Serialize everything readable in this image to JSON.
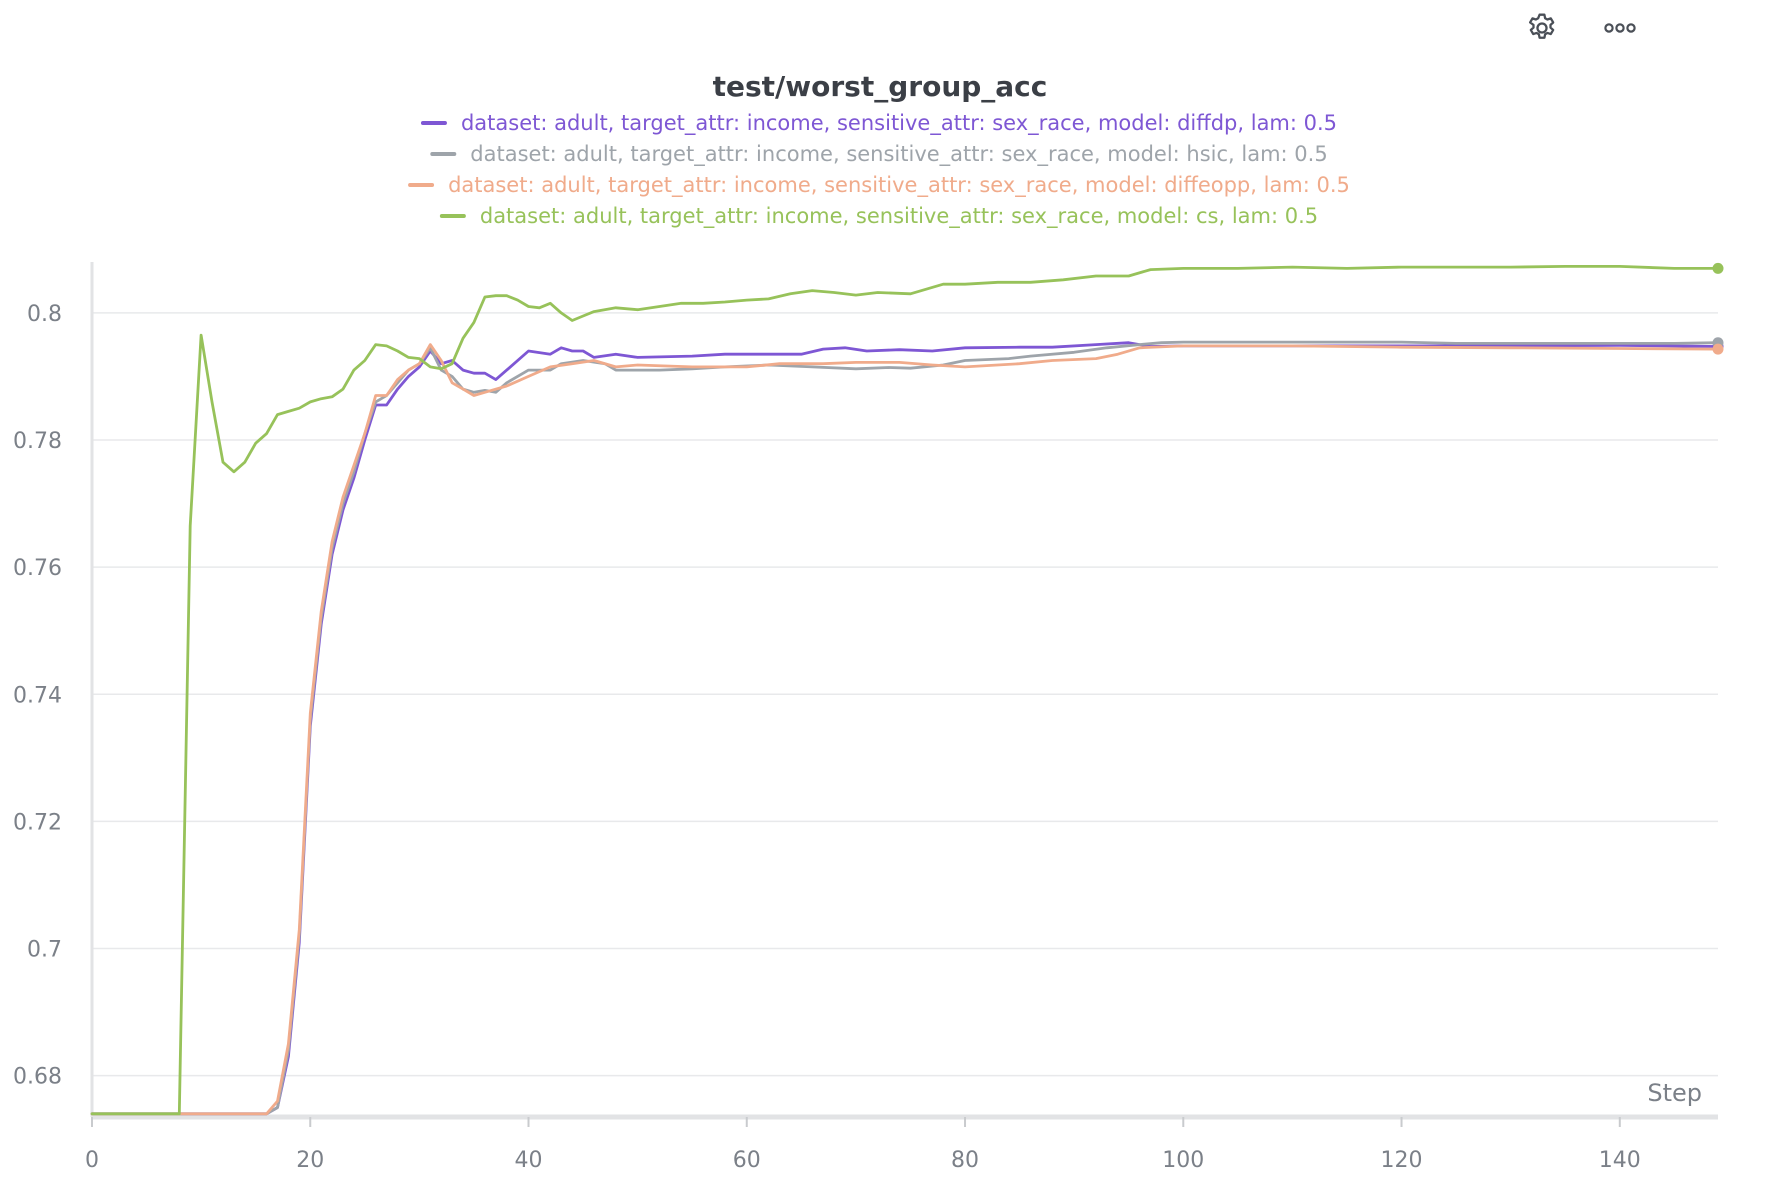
{
  "panel": {
    "settings_icon": "gear-icon",
    "more_icon": "more-horizontal-icon"
  },
  "chart_data": {
    "type": "line",
    "title": "test/worst_group_acc",
    "xlabel": "Step",
    "ylabel": "",
    "xlim": [
      0,
      149
    ],
    "ylim": [
      0.6735,
      0.808
    ],
    "xticks": [
      0,
      20,
      40,
      60,
      80,
      100,
      120,
      140
    ],
    "yticks": [
      0.68,
      0.7,
      0.72,
      0.74,
      0.76,
      0.78,
      0.8
    ],
    "ytick_labels": [
      "0.68",
      "0.7",
      "0.72",
      "0.74",
      "0.76",
      "0.78",
      "0.8"
    ],
    "grid": true,
    "legend_position": "top-center",
    "series": [
      {
        "name": "dataset: adult, target_attr: income, sensitive_attr: sex_race, model: diffdp, lam: 0.5",
        "color": "#7e57d4",
        "points": [
          [
            0,
            0.674
          ],
          [
            16,
            0.674
          ],
          [
            17,
            0.675
          ],
          [
            18,
            0.683
          ],
          [
            19,
            0.701
          ],
          [
            20,
            0.735
          ],
          [
            21,
            0.751
          ],
          [
            22,
            0.762
          ],
          [
            23,
            0.769
          ],
          [
            24,
            0.774
          ],
          [
            25,
            0.78
          ],
          [
            26,
            0.7855
          ],
          [
            27,
            0.7855
          ],
          [
            28,
            0.788
          ],
          [
            29,
            0.79
          ],
          [
            30,
            0.7915
          ],
          [
            31,
            0.794
          ],
          [
            32,
            0.792
          ],
          [
            33,
            0.7925
          ],
          [
            34,
            0.791
          ],
          [
            35,
            0.7905
          ],
          [
            36,
            0.7905
          ],
          [
            37,
            0.7895
          ],
          [
            38,
            0.791
          ],
          [
            40,
            0.794
          ],
          [
            42,
            0.7935
          ],
          [
            43,
            0.7945
          ],
          [
            44,
            0.794
          ],
          [
            45,
            0.794
          ],
          [
            46,
            0.793
          ],
          [
            48,
            0.7935
          ],
          [
            50,
            0.793
          ],
          [
            55,
            0.7932
          ],
          [
            58,
            0.7935
          ],
          [
            60,
            0.7935
          ],
          [
            63,
            0.7935
          ],
          [
            65,
            0.7935
          ],
          [
            67,
            0.7943
          ],
          [
            69,
            0.7945
          ],
          [
            71,
            0.794
          ],
          [
            74,
            0.7942
          ],
          [
            77,
            0.794
          ],
          [
            80,
            0.7945
          ],
          [
            85,
            0.7946
          ],
          [
            88,
            0.7946
          ],
          [
            92,
            0.795
          ],
          [
            95,
            0.7953
          ],
          [
            97,
            0.7947
          ],
          [
            100,
            0.7948
          ],
          [
            110,
            0.7948
          ],
          [
            120,
            0.7948
          ],
          [
            130,
            0.7948
          ],
          [
            140,
            0.7949
          ],
          [
            149,
            0.7947
          ]
        ]
      },
      {
        "name": "dataset: adult, target_attr: income, sensitive_attr: sex_race, model: hsic, lam: 0.5",
        "color": "#9ea4aa",
        "points": [
          [
            0,
            0.674
          ],
          [
            16,
            0.674
          ],
          [
            17,
            0.675
          ],
          [
            18,
            0.684
          ],
          [
            19,
            0.702
          ],
          [
            20,
            0.736
          ],
          [
            21,
            0.752
          ],
          [
            22,
            0.763
          ],
          [
            23,
            0.77
          ],
          [
            24,
            0.775
          ],
          [
            25,
            0.781
          ],
          [
            26,
            0.786
          ],
          [
            27,
            0.787
          ],
          [
            28,
            0.789
          ],
          [
            29,
            0.791
          ],
          [
            30,
            0.792
          ],
          [
            31,
            0.7945
          ],
          [
            32,
            0.791
          ],
          [
            33,
            0.79
          ],
          [
            34,
            0.788
          ],
          [
            35,
            0.7875
          ],
          [
            36,
            0.7878
          ],
          [
            37,
            0.7875
          ],
          [
            38,
            0.789
          ],
          [
            40,
            0.791
          ],
          [
            42,
            0.791
          ],
          [
            43,
            0.792
          ],
          [
            45,
            0.7925
          ],
          [
            47,
            0.792
          ],
          [
            48,
            0.791
          ],
          [
            52,
            0.791
          ],
          [
            55,
            0.7912
          ],
          [
            58,
            0.7915
          ],
          [
            62,
            0.7918
          ],
          [
            66,
            0.7915
          ],
          [
            70,
            0.7912
          ],
          [
            73,
            0.7914
          ],
          [
            75,
            0.7913
          ],
          [
            78,
            0.7918
          ],
          [
            80,
            0.7925
          ],
          [
            84,
            0.7928
          ],
          [
            86,
            0.7932
          ],
          [
            90,
            0.7938
          ],
          [
            93,
            0.7945
          ],
          [
            96,
            0.795
          ],
          [
            98,
            0.7953
          ],
          [
            100,
            0.7954
          ],
          [
            110,
            0.7954
          ],
          [
            120,
            0.7954
          ],
          [
            125,
            0.7952
          ],
          [
            130,
            0.7952
          ],
          [
            140,
            0.7952
          ],
          [
            145,
            0.7952
          ],
          [
            149,
            0.7953
          ]
        ]
      },
      {
        "name": "dataset: adult, target_attr: income, sensitive_attr: sex_race, model: diffeopp, lam: 0.5",
        "color": "#f0ab8b",
        "points": [
          [
            0,
            0.674
          ],
          [
            16,
            0.674
          ],
          [
            17,
            0.676
          ],
          [
            18,
            0.685
          ],
          [
            19,
            0.703
          ],
          [
            20,
            0.737
          ],
          [
            21,
            0.753
          ],
          [
            22,
            0.764
          ],
          [
            23,
            0.771
          ],
          [
            24,
            0.776
          ],
          [
            25,
            0.781
          ],
          [
            26,
            0.787
          ],
          [
            27,
            0.787
          ],
          [
            28,
            0.7895
          ],
          [
            29,
            0.791
          ],
          [
            30,
            0.792
          ],
          [
            31,
            0.795
          ],
          [
            32,
            0.7925
          ],
          [
            33,
            0.789
          ],
          [
            34,
            0.788
          ],
          [
            35,
            0.787
          ],
          [
            36,
            0.7875
          ],
          [
            38,
            0.7885
          ],
          [
            40,
            0.79
          ],
          [
            42,
            0.7915
          ],
          [
            44,
            0.792
          ],
          [
            46,
            0.7925
          ],
          [
            48,
            0.7915
          ],
          [
            50,
            0.7918
          ],
          [
            55,
            0.7915
          ],
          [
            60,
            0.7915
          ],
          [
            63,
            0.792
          ],
          [
            67,
            0.792
          ],
          [
            70,
            0.7922
          ],
          [
            74,
            0.7922
          ],
          [
            77,
            0.7918
          ],
          [
            80,
            0.7915
          ],
          [
            85,
            0.792
          ],
          [
            88,
            0.7925
          ],
          [
            92,
            0.7928
          ],
          [
            94,
            0.7935
          ],
          [
            96,
            0.7945
          ],
          [
            100,
            0.7948
          ],
          [
            110,
            0.7948
          ],
          [
            120,
            0.7946
          ],
          [
            130,
            0.7945
          ],
          [
            140,
            0.7944
          ],
          [
            149,
            0.7943
          ]
        ]
      },
      {
        "name": "dataset: adult, target_attr: income, sensitive_attr: sex_race, model: cs, lam: 0.5",
        "color": "#97c25a",
        "points": [
          [
            0,
            0.674
          ],
          [
            8,
            0.674
          ],
          [
            9,
            0.7665
          ],
          [
            10,
            0.7965
          ],
          [
            11,
            0.786
          ],
          [
            12,
            0.7765
          ],
          [
            13,
            0.775
          ],
          [
            14,
            0.7765
          ],
          [
            15,
            0.7795
          ],
          [
            16,
            0.781
          ],
          [
            17,
            0.784
          ],
          [
            18,
            0.7845
          ],
          [
            19,
            0.785
          ],
          [
            20,
            0.786
          ],
          [
            21,
            0.7865
          ],
          [
            22,
            0.7868
          ],
          [
            23,
            0.788
          ],
          [
            24,
            0.791
          ],
          [
            25,
            0.7925
          ],
          [
            26,
            0.795
          ],
          [
            27,
            0.7948
          ],
          [
            28,
            0.794
          ],
          [
            29,
            0.793
          ],
          [
            30,
            0.7928
          ],
          [
            31,
            0.7915
          ],
          [
            32,
            0.7912
          ],
          [
            33,
            0.792
          ],
          [
            34,
            0.796
          ],
          [
            35,
            0.7985
          ],
          [
            36,
            0.8025
          ],
          [
            37,
            0.8027
          ],
          [
            38,
            0.8027
          ],
          [
            39,
            0.802
          ],
          [
            40,
            0.801
          ],
          [
            41,
            0.8008
          ],
          [
            42,
            0.8015
          ],
          [
            43,
            0.8
          ],
          [
            44,
            0.7988
          ],
          [
            45,
            0.7995
          ],
          [
            46,
            0.8002
          ],
          [
            48,
            0.8008
          ],
          [
            50,
            0.8005
          ],
          [
            52,
            0.801
          ],
          [
            54,
            0.8015
          ],
          [
            56,
            0.8015
          ],
          [
            58,
            0.8017
          ],
          [
            60,
            0.802
          ],
          [
            62,
            0.8022
          ],
          [
            64,
            0.803
          ],
          [
            66,
            0.8035
          ],
          [
            68,
            0.8032
          ],
          [
            70,
            0.8028
          ],
          [
            72,
            0.8032
          ],
          [
            75,
            0.803
          ],
          [
            78,
            0.8045
          ],
          [
            80,
            0.8045
          ],
          [
            83,
            0.8048
          ],
          [
            86,
            0.8048
          ],
          [
            89,
            0.8052
          ],
          [
            92,
            0.8058
          ],
          [
            95,
            0.8058
          ],
          [
            97,
            0.8068
          ],
          [
            100,
            0.807
          ],
          [
            105,
            0.807
          ],
          [
            110,
            0.8072
          ],
          [
            115,
            0.807
          ],
          [
            120,
            0.8072
          ],
          [
            125,
            0.8072
          ],
          [
            130,
            0.8072
          ],
          [
            135,
            0.8073
          ],
          [
            140,
            0.8073
          ],
          [
            145,
            0.807
          ],
          [
            149,
            0.807
          ]
        ]
      }
    ]
  }
}
